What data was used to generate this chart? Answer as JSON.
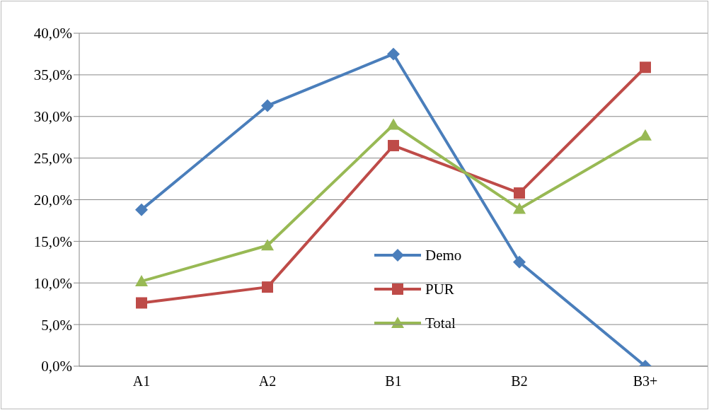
{
  "chart_data": {
    "type": "line",
    "categories": [
      "A1",
      "A2",
      "B1",
      "B2",
      "B3+"
    ],
    "series": [
      {
        "name": "Demo",
        "color": "#4a7ebb",
        "marker": "diamond",
        "values": [
          18.8,
          31.3,
          37.5,
          12.5,
          0
        ]
      },
      {
        "name": "PUR",
        "color": "#be4b48",
        "marker": "square",
        "values": [
          7.6,
          9.5,
          26.5,
          20.8,
          35.9
        ]
      },
      {
        "name": "Total",
        "color": "#98b954",
        "marker": "triangle",
        "values": [
          10.2,
          14.5,
          29.0,
          18.9,
          27.7
        ]
      }
    ],
    "ylim": [
      0,
      40
    ],
    "yticks": [
      {
        "value": 0,
        "label": "0,0%"
      },
      {
        "value": 5,
        "label": "5,0%"
      },
      {
        "value": 10,
        "label": "10,0%"
      },
      {
        "value": 15,
        "label": "15,0%"
      },
      {
        "value": 20,
        "label": "20,0%"
      },
      {
        "value": 25,
        "label": "25,0%"
      },
      {
        "value": 30,
        "label": "30,0%"
      },
      {
        "value": 35,
        "label": "35,0%"
      },
      {
        "value": 40,
        "label": "40,0%"
      }
    ],
    "grid": "y",
    "legend": "center",
    "line_style": "solid"
  }
}
